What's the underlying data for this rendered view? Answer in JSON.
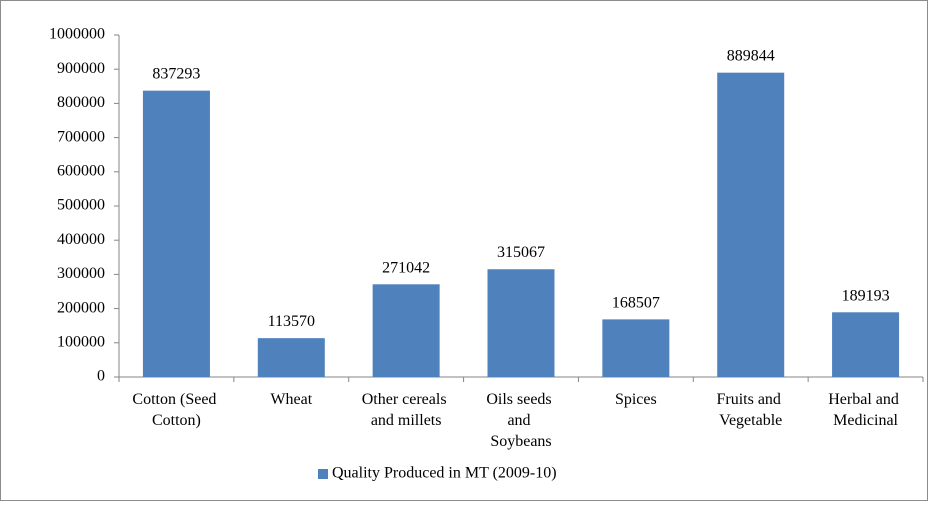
{
  "chart_data": {
    "type": "bar",
    "categories": [
      "Cotton (Seed Cotton)",
      "Wheat",
      "Other cereals and millets",
      "Oils seeds and Soybeans",
      "Spices",
      "Fruits and Vegetable",
      "Herbal and Medicinal"
    ],
    "series": [
      {
        "name": "Quality Produced in MT (2009-10)",
        "color": "#4f81bd",
        "values": [
          837293,
          113570,
          271042,
          315067,
          168507,
          889844,
          189193
        ]
      }
    ],
    "ylim": [
      0,
      1000000
    ],
    "yticks": [
      0,
      100000,
      200000,
      300000,
      400000,
      500000,
      600000,
      700000,
      800000,
      900000,
      1000000
    ],
    "grid": false,
    "legend": "bottom"
  }
}
